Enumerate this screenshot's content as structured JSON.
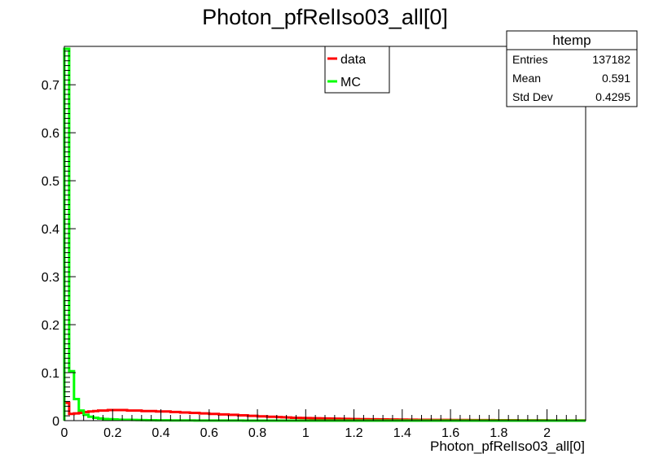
{
  "chart_data": {
    "type": "histogram",
    "title": "Photon_pfRelIso03_all[0]",
    "xlabel": "Photon_pfRelIso03_all[0]",
    "ylabel": "",
    "xlim": [
      0,
      2.16
    ],
    "ylim": [
      0,
      0.78
    ],
    "x_ticks": [
      "0",
      "0.2",
      "0.4",
      "0.6",
      "0.8",
      "1",
      "1.2",
      "1.4",
      "1.6",
      "1.8",
      "2"
    ],
    "y_ticks": [
      "0",
      "0.1",
      "0.2",
      "0.3",
      "0.4",
      "0.5",
      "0.6",
      "0.7"
    ],
    "bin_width": 0.02,
    "legend": {
      "placement": "top-center-right",
      "entries": [
        "data",
        "MC"
      ]
    },
    "stats_box": {
      "title": "htemp",
      "rows": [
        {
          "label": "Entries",
          "value": "137182"
        },
        {
          "label": "Mean",
          "value": "0.591"
        },
        {
          "label": "Std Dev",
          "value": "0.4295"
        }
      ]
    },
    "series": [
      {
        "name": "data",
        "color": "#ff0000",
        "values": [
          0.037,
          0.014,
          0.015,
          0.016,
          0.018,
          0.019,
          0.02,
          0.021,
          0.021,
          0.022,
          0.022,
          0.022,
          0.022,
          0.021,
          0.021,
          0.021,
          0.02,
          0.02,
          0.02,
          0.019,
          0.019,
          0.019,
          0.018,
          0.018,
          0.017,
          0.017,
          0.016,
          0.016,
          0.015,
          0.015,
          0.014,
          0.014,
          0.013,
          0.013,
          0.012,
          0.012,
          0.011,
          0.011,
          0.01,
          0.01,
          0.009,
          0.009,
          0.008,
          0.008,
          0.0075,
          0.007,
          0.0065,
          0.006,
          0.0058,
          0.0055,
          0.0052,
          0.005,
          0.0048,
          0.0046,
          0.0044,
          0.0042,
          0.004,
          0.0038,
          0.0036,
          0.0034,
          0.0032,
          0.003,
          0.0029,
          0.0028,
          0.0027,
          0.0026,
          0.0025,
          0.0024,
          0.0023,
          0.0022,
          0.0021,
          0.002,
          0.0019,
          0.0018,
          0.0017,
          0.0016,
          0.0015,
          0.0015,
          0.0014,
          0.0014,
          0.0013,
          0.0013,
          0.0012,
          0.0012,
          0.0011,
          0.0011,
          0.001,
          0.001,
          0.001,
          0.0009,
          0.0009,
          0.0008,
          0.0008,
          0.0008,
          0.0007,
          0.0007,
          0.0007,
          0.0006,
          0.0006,
          0.0006,
          0.0005,
          0.0005,
          0.0005,
          0.0005,
          0.0004,
          0.0004,
          0.0004,
          0.0004
        ]
      },
      {
        "name": "MC",
        "color": "#00ff00",
        "values": [
          0.775,
          0.103,
          0.045,
          0.021,
          0.012,
          0.008,
          0.006,
          0.0045,
          0.0035,
          0.003,
          0.0025,
          0.002,
          0.0018,
          0.0016,
          0.0014,
          0.0012,
          0.001,
          0.0009,
          0.0008,
          0.0007,
          0.0006,
          0.0006,
          0.0005,
          0.0005,
          0.0004,
          0.0004,
          0.0004,
          0.0003,
          0.0003,
          0.0003,
          0.0003,
          0.0002,
          0.0002,
          0.0002,
          0.0002,
          0.0002,
          0.0002,
          0.0001,
          0.0001,
          0.0001,
          0.0001,
          0.0001,
          0.0001,
          0.0001,
          0.0001,
          0.0001,
          0.0001,
          0.0001,
          0.0001,
          0.0001,
          0.0001,
          0.0001,
          0.0001,
          0.0001,
          0.0001,
          0.0001,
          0.0001,
          0.0001,
          0.0001,
          0.0001,
          0.0001,
          0.0001,
          0.0001,
          0.0001,
          0.0001,
          0.0001,
          0.0001,
          0.0001,
          0.0001,
          0.0001,
          0.0001,
          0.0001,
          0.0001,
          0.0001,
          0.0001,
          0.0001,
          0.0001,
          0.0001,
          0.0001,
          0.0001,
          0.0001,
          0.0001,
          0.0001,
          0.0001,
          0.0001,
          0.0001,
          0.0001,
          0.0001,
          0.0001,
          0.0001,
          0.0001,
          0.0001,
          0.0001,
          0.0001,
          0.0001,
          0.0001,
          0.0001,
          0.0001,
          0.0001,
          0.0001,
          0.0001,
          0.0001,
          0.0001,
          0.0001,
          0.0001,
          0.0001,
          0.0001,
          0.0001
        ]
      }
    ]
  }
}
